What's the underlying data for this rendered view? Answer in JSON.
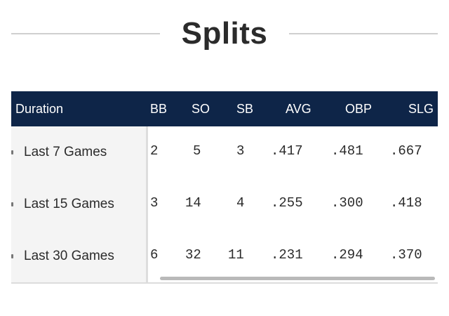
{
  "title": "Splits",
  "table": {
    "columns": [
      "Duration",
      "BB",
      "SO",
      "SB",
      "AVG",
      "OBP",
      "SLG"
    ],
    "rows": [
      {
        "duration": "Last 7 Games",
        "bb": "2",
        "so": "5",
        "sb": "3",
        "avg": ".417",
        "obp": ".481",
        "slg": ".667"
      },
      {
        "duration": "Last 15 Games",
        "bb": "3",
        "so": "14",
        "sb": "4",
        "avg": ".255",
        "obp": ".300",
        "slg": ".418"
      },
      {
        "duration": "Last 30 Games",
        "bb": "6",
        "so": "32",
        "sb": "11",
        "avg": ".231",
        "obp": ".294",
        "slg": ".370"
      }
    ]
  },
  "colors": {
    "header_bg": "#0e2548",
    "first_col_bg": "#f4f4f4"
  }
}
